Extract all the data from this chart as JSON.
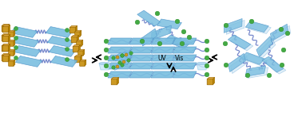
{
  "bg_color": "#ffffff",
  "blue_color": "#7bbfe0",
  "blue_edge": "#5599cc",
  "blue_light": "#b0d8f0",
  "green_color": "#44aa44",
  "green_edge": "#228822",
  "gold_color": "#cc9922",
  "gold_edge": "#996600",
  "wavy_color": "#7788cc",
  "arrow_color": "#222222",
  "scattered_color": "#55aadd"
}
